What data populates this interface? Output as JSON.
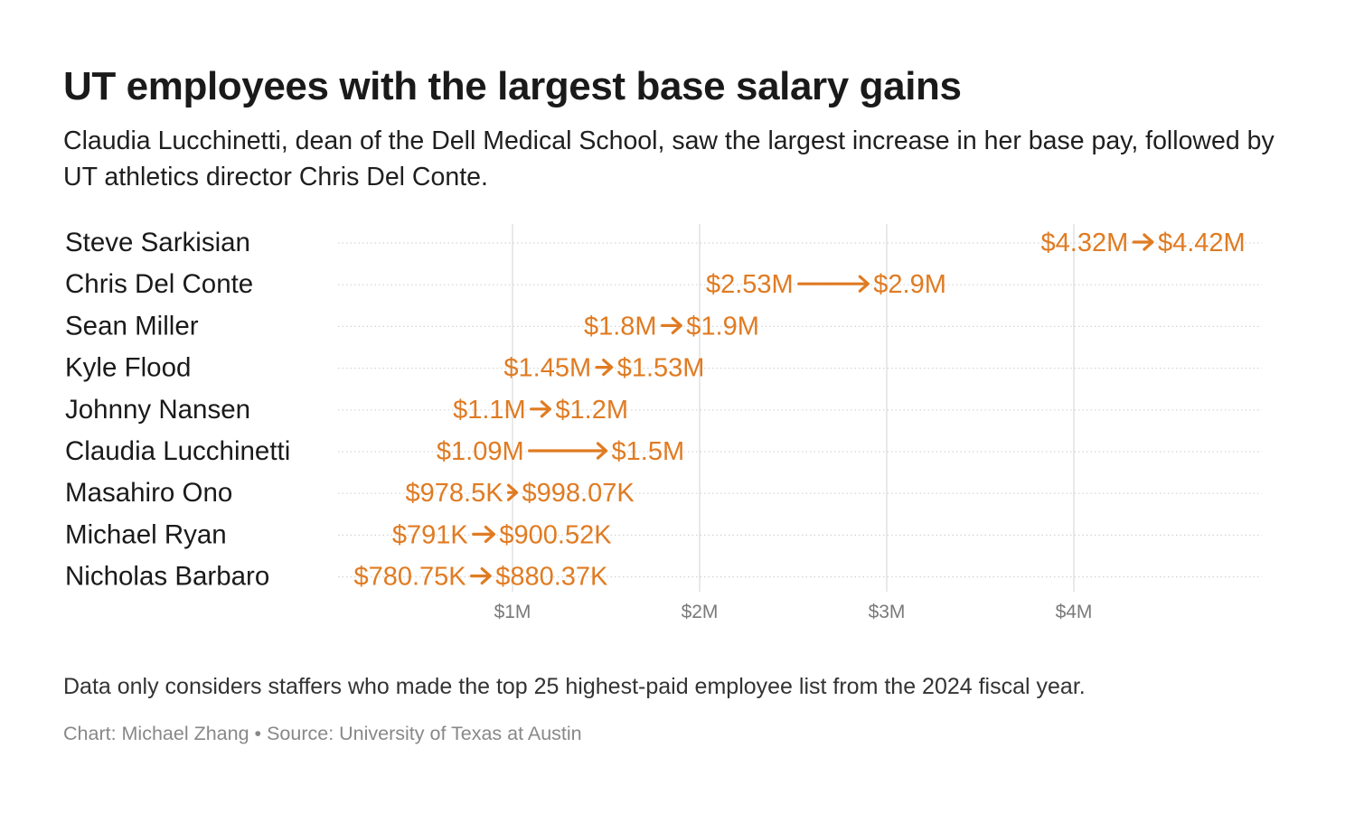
{
  "header": {
    "title": "UT employees with the largest base salary gains",
    "subtitle": "Claudia Lucchinetti, dean of the Dell Medical School, saw the largest increase in her base pay, followed by UT athletics director Chris Del Conte."
  },
  "footer": {
    "note": "Data only considers staffers who made the top 25 highest-paid employee list from the 2024 fiscal year.",
    "credit_chart": "Chart: Michael Zhang",
    "credit_separator": "•",
    "credit_source": "Source: University of Texas at Austin"
  },
  "colors": {
    "accent": "#e07b22",
    "gridline": "#e2e2e2",
    "row_dots": "#d4d4d4",
    "axis_text": "#7a7a7a",
    "name_text": "#1a1a1a"
  },
  "chart_data": {
    "type": "arrow",
    "title": "UT employees with the largest base salary gains",
    "value_unit": "USD",
    "xlim": [
      70000,
      5000000
    ],
    "x_ticks": [
      {
        "value": 1000000,
        "label": "$1M"
      },
      {
        "value": 2000000,
        "label": "$2M"
      },
      {
        "value": 3000000,
        "label": "$3M"
      },
      {
        "value": 4000000,
        "label": "$4M"
      }
    ],
    "series": [
      {
        "name": "Steve Sarkisian",
        "from": 4320000,
        "to": 4420000,
        "from_label": "$4.32M",
        "to_label": "$4.42M"
      },
      {
        "name": "Chris Del Conte",
        "from": 2530000,
        "to": 2900000,
        "from_label": "$2.53M",
        "to_label": "$2.9M"
      },
      {
        "name": "Sean Miller",
        "from": 1800000,
        "to": 1900000,
        "from_label": "$1.8M",
        "to_label": "$1.9M"
      },
      {
        "name": "Kyle Flood",
        "from": 1450000,
        "to": 1530000,
        "from_label": "$1.45M",
        "to_label": "$1.53M"
      },
      {
        "name": "Johnny Nansen",
        "from": 1100000,
        "to": 1200000,
        "from_label": "$1.1M",
        "to_label": "$1.2M"
      },
      {
        "name": "Claudia Lucchinetti",
        "from": 1090000,
        "to": 1500000,
        "from_label": "$1.09M",
        "to_label": "$1.5M"
      },
      {
        "name": "Masahiro Ono",
        "from": 978500,
        "to": 998070,
        "from_label": "$978.5K",
        "to_label": "$998.07K"
      },
      {
        "name": "Michael Ryan",
        "from": 791000,
        "to": 900520,
        "from_label": "$791K",
        "to_label": "$900.52K"
      },
      {
        "name": "Nicholas Barbaro",
        "from": 780750,
        "to": 880370,
        "from_label": "$780.75K",
        "to_label": "$880.37K"
      }
    ]
  }
}
